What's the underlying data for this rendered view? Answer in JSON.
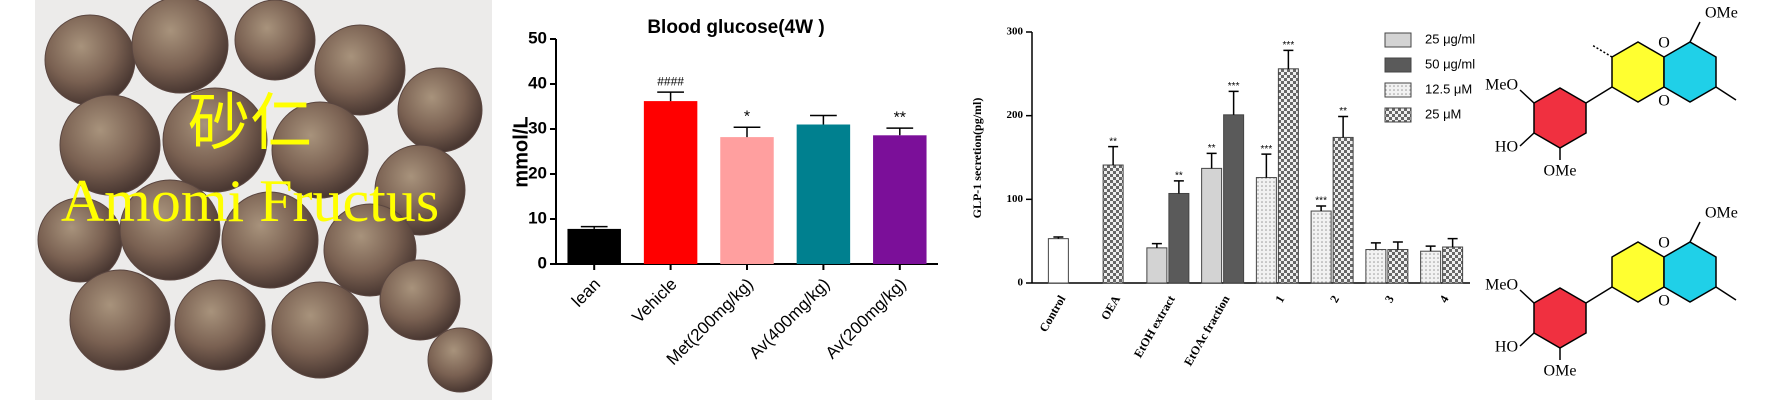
{
  "photo": {
    "label_cn": "砂仁",
    "label_en": "Amomi Fructus"
  },
  "chart_data": [
    {
      "type": "bar",
      "title": "Blood glucose(4W )",
      "y_label": "mmol/L",
      "categories": [
        "lean",
        "Vehicle",
        "Met(200mg/kg)",
        "Av(400mg/kg)",
        "Av(200mg/kg)"
      ],
      "values": [
        7.8,
        36.2,
        28.2,
        31,
        28.6
      ],
      "errors": [
        0.5,
        2,
        2.2,
        2,
        1.6
      ],
      "colors": [
        "#000000",
        "#ff0000",
        "#ff9f9f",
        "#00808f",
        "#7b0f99"
      ],
      "annotations": [
        null,
        "####",
        "*",
        null,
        "**"
      ],
      "ylim": [
        0,
        50
      ],
      "yticks": [
        0,
        10,
        20,
        30,
        40,
        50
      ]
    },
    {
      "type": "grouped_bar",
      "y_label": "GLP-1 secretion(pg/ml)",
      "categories": [
        "Control",
        "OEA",
        "EtOH extract",
        "EtOAc fraction",
        "1",
        "2",
        "3",
        "4"
      ],
      "reference_bars": {
        "color": "#ffffff",
        "values": [
          53,
          null,
          null,
          null,
          null,
          null,
          null,
          null
        ],
        "errors": [
          2,
          null,
          null,
          null,
          null,
          null,
          null,
          null
        ]
      },
      "series": [
        {
          "name": "25 μg/ml",
          "color": "#d3d3d3",
          "pattern": "solid",
          "values": [
            null,
            null,
            42,
            137,
            null,
            null,
            null,
            null
          ],
          "errors": [
            null,
            null,
            5,
            18,
            null,
            null,
            null,
            null
          ],
          "annotations": [
            null,
            null,
            null,
            "**",
            null,
            null,
            null,
            null
          ]
        },
        {
          "name": "50 μg/ml",
          "color": "#5a5a5a",
          "pattern": "solid",
          "values": [
            null,
            null,
            107,
            201,
            null,
            null,
            null,
            null
          ],
          "errors": [
            null,
            null,
            15,
            28,
            null,
            null,
            null,
            null
          ],
          "annotations": [
            null,
            null,
            "**",
            "***",
            null,
            null,
            null,
            null
          ]
        },
        {
          "name": "12.5 μM",
          "color": "#cfcfcf",
          "pattern": "dots",
          "values": [
            null,
            null,
            null,
            null,
            126,
            86,
            40,
            38
          ],
          "errors": [
            null,
            null,
            null,
            null,
            28,
            6,
            8,
            6
          ],
          "annotations": [
            null,
            null,
            null,
            null,
            "***",
            "***",
            null,
            null
          ]
        },
        {
          "name": "25 μM",
          "color": "#555555",
          "pattern": "checker",
          "values": [
            null,
            141,
            null,
            null,
            256,
            174,
            40,
            43
          ],
          "errors": [
            null,
            22,
            null,
            null,
            22,
            25,
            9,
            10
          ],
          "annotations": [
            null,
            "**",
            null,
            null,
            "***",
            "**",
            null,
            null
          ]
        }
      ],
      "ylim": [
        0,
        300
      ],
      "yticks": [
        0,
        100,
        200,
        300
      ]
    }
  ],
  "structures": [
    {
      "top_ome": "OMe",
      "meo": "MeO",
      "ho": "HO",
      "bottom_ome": "OMe",
      "o1": "O",
      "o2": "O"
    },
    {
      "top_ome": "OMe",
      "meo": "MeO",
      "ho": "HO",
      "bottom_ome": "OMe",
      "o1": "O",
      "o2": "O"
    }
  ]
}
